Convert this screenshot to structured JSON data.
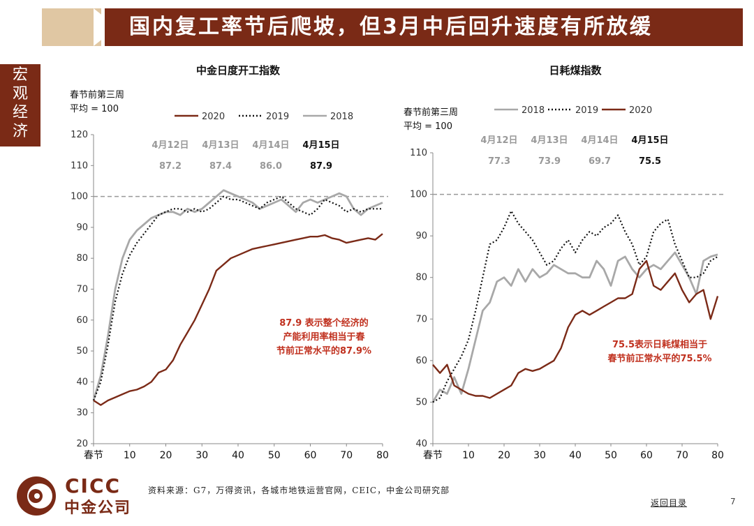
{
  "banner": {
    "title": "国内复工率节后爬坡，但3月中后回升速度有所放缓"
  },
  "sidebar": {
    "label": "宏观经济"
  },
  "footer": {
    "source": "资料来源：G7，万得资讯，各城市地铁运营官网，CEIC，中金公司研究部",
    "back": "返回目录",
    "page": "7"
  },
  "logo": {
    "en": "CICC",
    "cn": "中金公司",
    "color": "#7a2a16"
  },
  "colors": {
    "s2020": "#7b2a17",
    "s2019": "#111111",
    "s2018": "#a8a8a8",
    "brand": "#7a2a16",
    "note": "#c0301e"
  },
  "chart_data": [
    {
      "type": "line",
      "title": "中金日度开工指数",
      "ylabel_lines": [
        "春节前第三周",
        "平均 = 100"
      ],
      "ylim": [
        20,
        120
      ],
      "yticks": [
        20,
        30,
        40,
        50,
        60,
        70,
        80,
        90,
        100,
        110,
        120
      ],
      "xlim": [
        0,
        80
      ],
      "xticks": [
        "春节",
        "10",
        "20",
        "30",
        "40",
        "50",
        "60",
        "70",
        "80"
      ],
      "reference_line": 100,
      "legend": [
        "2020",
        "2019",
        "2018"
      ],
      "readings": {
        "dates": [
          "4月12日",
          "4月13日",
          "4月14日",
          "4月15日"
        ],
        "values": [
          "87.2",
          "87.4",
          "86.0",
          "87.9"
        ]
      },
      "annotation": [
        "87.9 表示整个经济的",
        "产能利用率相当于春",
        "节前正常水平的87.9%"
      ],
      "series": [
        {
          "name": "2020",
          "style": "solid",
          "x": [
            0,
            2,
            4,
            6,
            8,
            10,
            12,
            14,
            16,
            18,
            20,
            22,
            24,
            26,
            28,
            30,
            32,
            34,
            36,
            38,
            40,
            42,
            44,
            46,
            48,
            50,
            52,
            54,
            56,
            58,
            60,
            62,
            64,
            66,
            68,
            70,
            72,
            74,
            76,
            78,
            80
          ],
          "values": [
            34,
            32.5,
            34,
            35,
            36,
            37,
            37.5,
            38.5,
            40,
            43,
            44,
            47,
            52,
            56,
            60,
            65,
            70,
            76,
            78,
            80,
            81,
            82,
            83,
            83.5,
            84,
            84.5,
            85,
            85.5,
            86,
            86.5,
            87,
            87,
            87.5,
            86.5,
            86,
            85,
            85.5,
            86,
            86.5,
            86,
            87.9
          ]
        },
        {
          "name": "2019",
          "style": "dotted",
          "x": [
            0,
            2,
            4,
            6,
            8,
            10,
            12,
            14,
            16,
            18,
            20,
            22,
            24,
            26,
            28,
            30,
            32,
            34,
            36,
            38,
            40,
            42,
            44,
            46,
            48,
            50,
            52,
            54,
            56,
            58,
            60,
            62,
            64,
            66,
            68,
            70,
            72,
            74,
            76,
            78,
            80
          ],
          "values": [
            34,
            40,
            52,
            66,
            75,
            81,
            85,
            88,
            91,
            94,
            95,
            96,
            96,
            95,
            96,
            95,
            96,
            98,
            100,
            99,
            99,
            98,
            97,
            96,
            98,
            99,
            100,
            98,
            96,
            95,
            94,
            96,
            99,
            98,
            97,
            95,
            96,
            95,
            96,
            96,
            96
          ]
        },
        {
          "name": "2018",
          "style": "solid",
          "x": [
            0,
            2,
            4,
            6,
            8,
            10,
            12,
            14,
            16,
            18,
            20,
            22,
            24,
            26,
            28,
            30,
            32,
            34,
            36,
            38,
            40,
            42,
            44,
            46,
            48,
            50,
            52,
            54,
            56,
            58,
            60,
            62,
            64,
            66,
            68,
            70,
            72,
            74,
            76,
            78,
            80
          ],
          "values": [
            34,
            42,
            55,
            70,
            80,
            86,
            89,
            91,
            93,
            94,
            95,
            95,
            94,
            96,
            95,
            96,
            98,
            100,
            102,
            101,
            100,
            99,
            98,
            96,
            97,
            98,
            99,
            97,
            95,
            98,
            99,
            98,
            99,
            100,
            101,
            100,
            96,
            94,
            96,
            97,
            98
          ]
        }
      ]
    },
    {
      "type": "line",
      "title": "日耗煤指数",
      "ylabel_lines": [
        "春节前第三周",
        "平均 = 100"
      ],
      "ylim": [
        40,
        110
      ],
      "yticks": [
        40,
        50,
        60,
        70,
        80,
        90,
        100,
        110
      ],
      "xlim": [
        0,
        80
      ],
      "xticks": [
        "春节",
        "10",
        "20",
        "30",
        "40",
        "50",
        "60",
        "70",
        "80"
      ],
      "reference_line": 100,
      "legend": [
        "2018",
        "2019",
        "2020"
      ],
      "readings": {
        "dates": [
          "4月12日",
          "4月13日",
          "4月14日",
          "4月15日"
        ],
        "values": [
          "77.3",
          "73.9",
          "69.7",
          "75.5"
        ]
      },
      "annotation": [
        "75.5表示日耗煤相当于",
        "春节前正常水平的75.5%"
      ],
      "series": [
        {
          "name": "2018",
          "style": "solid",
          "x": [
            0,
            2,
            4,
            6,
            8,
            10,
            12,
            14,
            16,
            18,
            20,
            22,
            24,
            26,
            28,
            30,
            32,
            34,
            36,
            38,
            40,
            42,
            44,
            46,
            48,
            50,
            52,
            54,
            56,
            58,
            60,
            62,
            64,
            66,
            68,
            70,
            72,
            74,
            76,
            78,
            80
          ],
          "values": [
            50,
            53,
            52,
            56,
            52,
            58,
            65,
            72,
            74,
            79,
            80,
            78,
            82,
            79,
            82,
            80,
            81,
            83,
            82,
            81,
            81,
            80,
            80,
            84,
            82,
            78,
            84,
            85,
            82,
            80,
            82,
            83,
            82,
            84,
            86,
            83,
            80,
            76,
            84,
            85,
            85.5
          ]
        },
        {
          "name": "2019",
          "style": "dotted",
          "x": [
            0,
            2,
            4,
            6,
            8,
            10,
            12,
            14,
            16,
            18,
            20,
            22,
            24,
            26,
            28,
            30,
            32,
            34,
            36,
            38,
            40,
            42,
            44,
            46,
            48,
            50,
            52,
            54,
            56,
            58,
            60,
            62,
            64,
            66,
            68,
            70,
            72,
            74,
            76,
            78,
            80
          ],
          "values": [
            50,
            51,
            55,
            58,
            61,
            65,
            72,
            80,
            88,
            89,
            92,
            96,
            93,
            91,
            89,
            86,
            83,
            84,
            87,
            89,
            86,
            89,
            91,
            90,
            92,
            93,
            95,
            91,
            88,
            83,
            85,
            91,
            93,
            94,
            88,
            84,
            80,
            80,
            81,
            84,
            85
          ]
        },
        {
          "name": "2020",
          "style": "solid",
          "x": [
            0,
            2,
            4,
            6,
            8,
            10,
            12,
            14,
            16,
            18,
            20,
            22,
            24,
            26,
            28,
            30,
            32,
            34,
            36,
            38,
            40,
            42,
            44,
            46,
            48,
            50,
            52,
            54,
            56,
            58,
            60,
            62,
            64,
            66,
            68,
            70,
            72,
            74,
            76,
            78,
            80
          ],
          "values": [
            59,
            57,
            59,
            54,
            53,
            52,
            51.5,
            51.5,
            51,
            52,
            53,
            54,
            57,
            58,
            57.5,
            58,
            59,
            60,
            63,
            68,
            71,
            72,
            71,
            72,
            73,
            74,
            75,
            75,
            76,
            82,
            84,
            78,
            77,
            79,
            81,
            77,
            74,
            76,
            77,
            70,
            75.5
          ]
        }
      ]
    }
  ]
}
